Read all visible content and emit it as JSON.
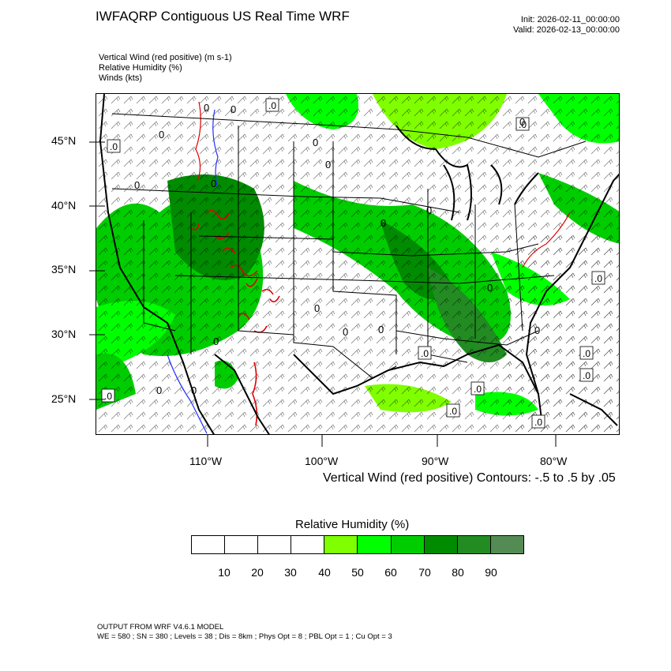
{
  "header": {
    "title": "IWFAQRP Contiguous US Real Time WRF",
    "init": "Init: 2026-02-11_00:00:00",
    "valid": "Valid: 2026-02-13_00:00:00"
  },
  "fields": [
    "Vertical Wind (red positive)   (m s-1)",
    "Relative Humidity   (%)",
    "Winds   (kts)"
  ],
  "map": {
    "lat_ticks": [
      "45°N",
      "40°N",
      "35°N",
      "30°N",
      "25°N"
    ],
    "lon_ticks": [
      "110°W",
      "100°W",
      "90°W",
      "80°W"
    ],
    "contour_labels": [
      ".0",
      "0"
    ],
    "contour_note": "Vertical Wind (red positive) Contours: -.5 to .5 by .05",
    "colors": {
      "positive": "#e00000",
      "negative": "#2030ff",
      "barbs": "#000000",
      "barbs_light": "#ffffff"
    }
  },
  "colorbar": {
    "title": "Relative Humidity  (%)",
    "colors": [
      "#ffffff",
      "#ffffff",
      "#ffffff",
      "#ffffff",
      "#7fff00",
      "#00ff00",
      "#00cd00",
      "#008b00",
      "#228b22",
      "#548b54"
    ],
    "ticks": [
      "10",
      "20",
      "30",
      "40",
      "50",
      "60",
      "70",
      "80",
      "90"
    ]
  },
  "footer": {
    "line1": "OUTPUT FROM WRF V4.6.1 MODEL",
    "line2": "WE = 580 ; SN = 380 ; Levels = 38 ; Dis = 8km ; Phys Opt = 8 ; PBL Opt = 1 ; Cu Opt = 3"
  }
}
